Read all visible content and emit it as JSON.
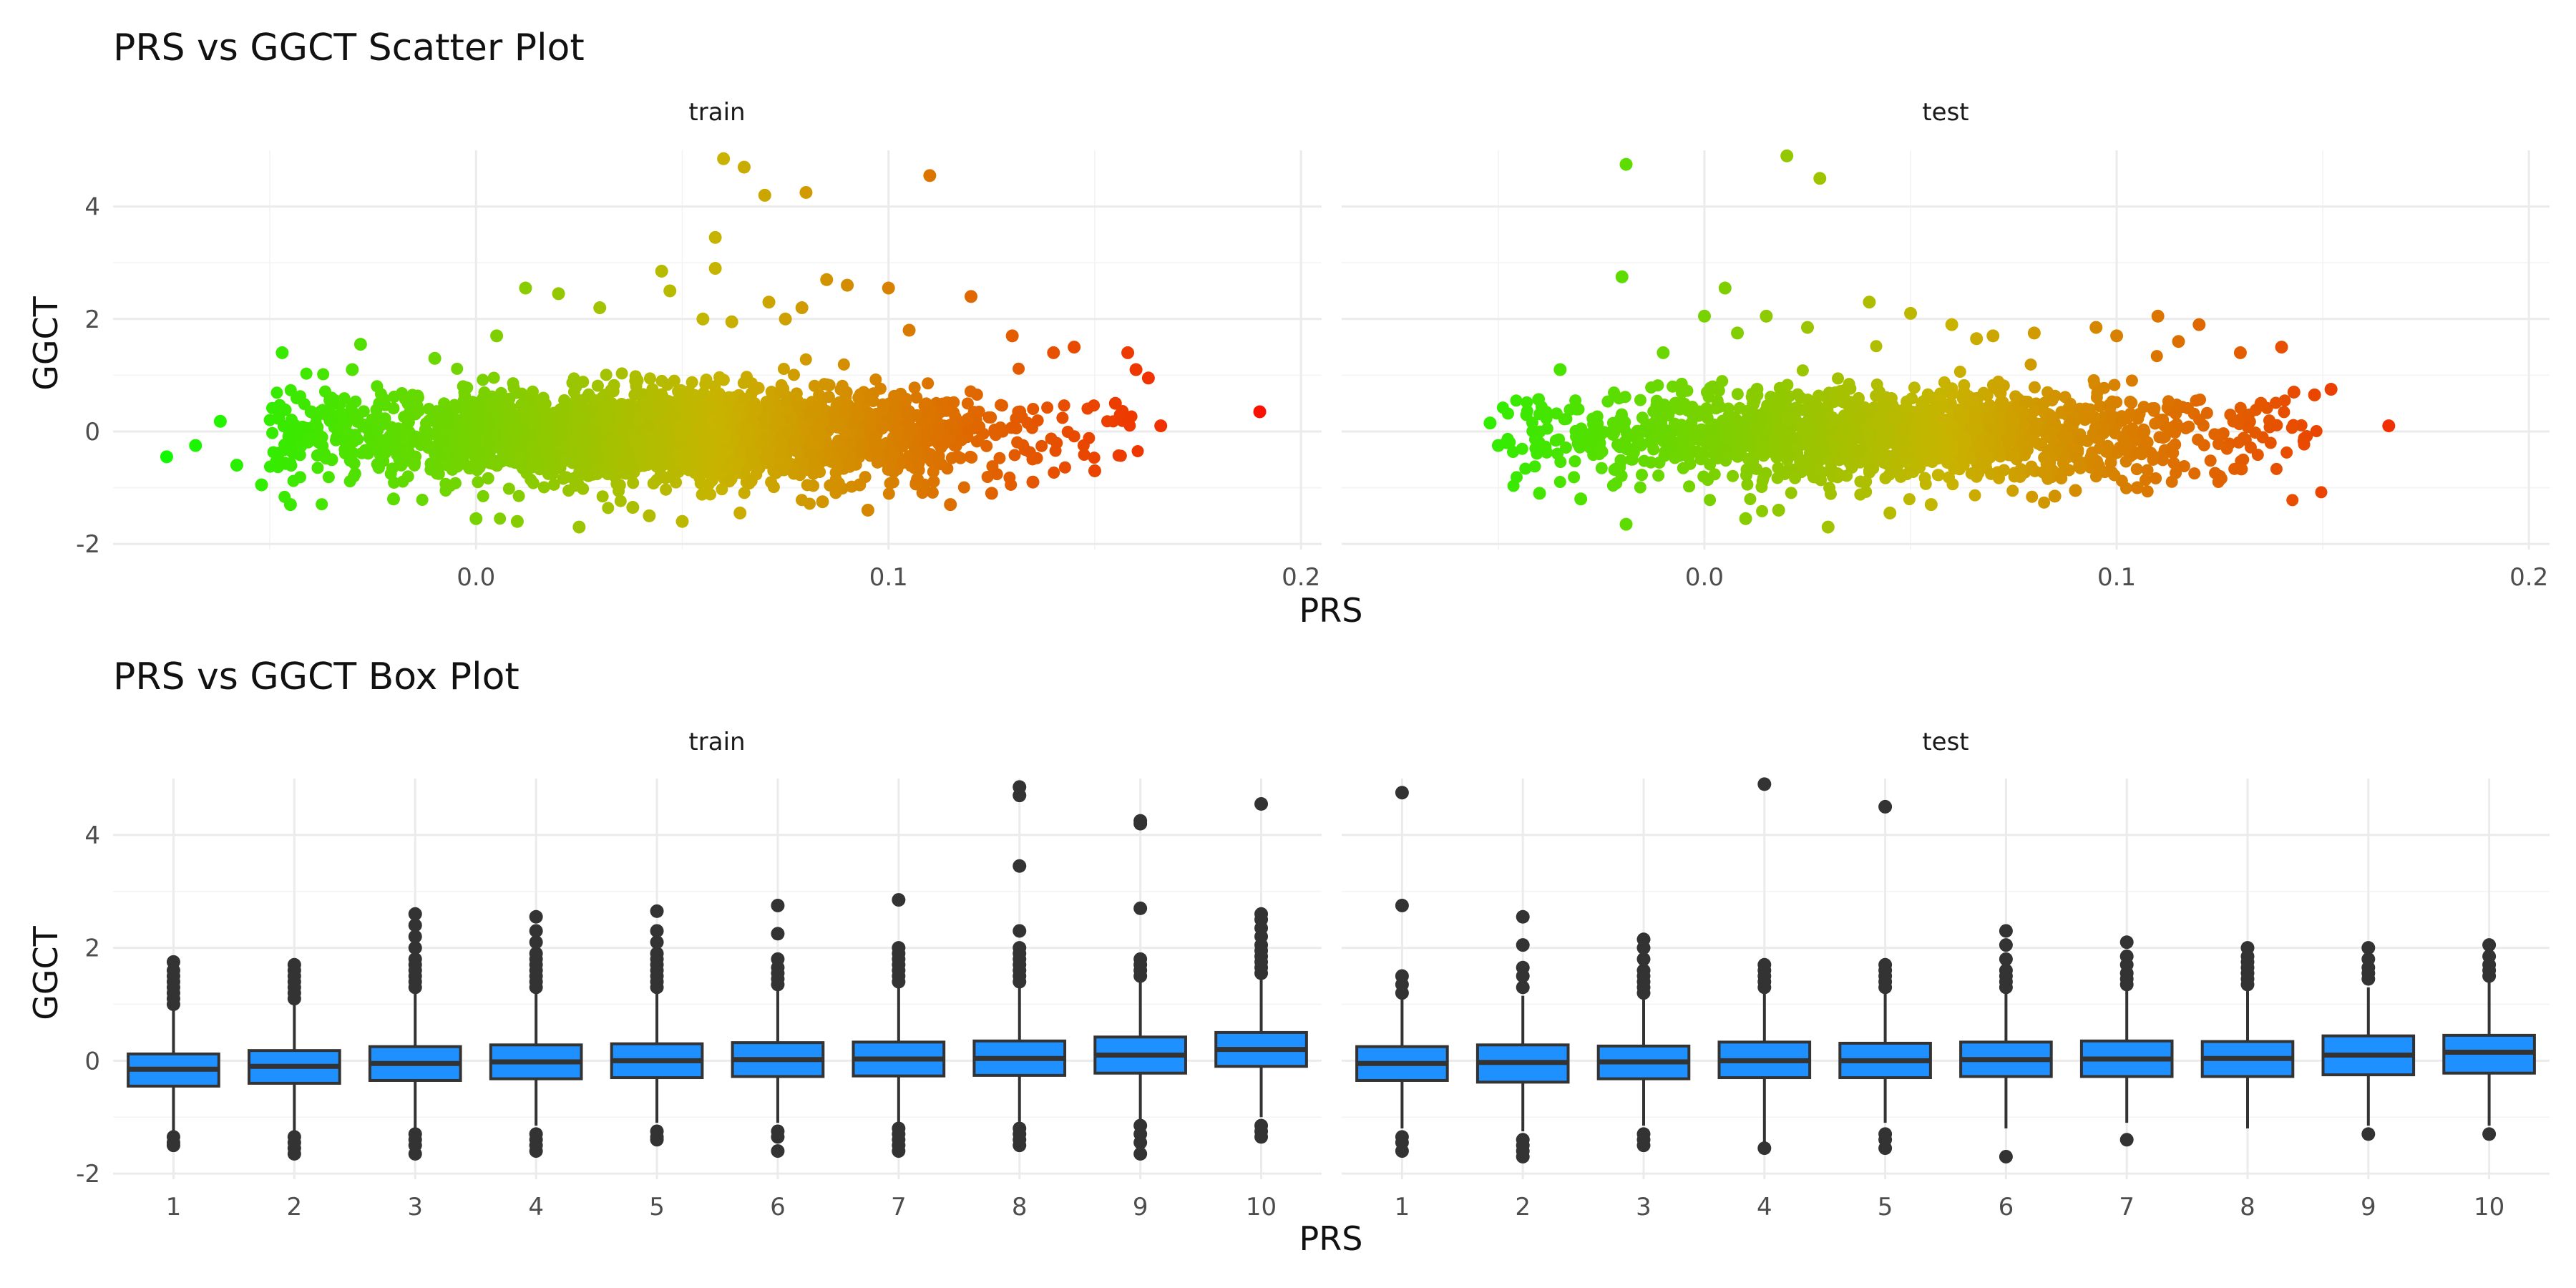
{
  "chart_data": [
    {
      "type": "scatter",
      "title": "PRS vs GGCT Scatter Plot",
      "xlabel": "PRS",
      "ylabel": "GGCT",
      "facets": [
        "train",
        "test"
      ],
      "xlim": [
        -0.088,
        0.205
      ],
      "ylim": [
        -2.1,
        5.0
      ],
      "x_ticks": [
        "0.0",
        "0.1",
        "0.2"
      ],
      "y_ticks": [
        "-2",
        "0",
        "2",
        "4"
      ],
      "grid": true,
      "legend": "none",
      "color_scale": {
        "low": "#00ff00",
        "mid": "#c8b400",
        "high": "#ff0000"
      },
      "series": [
        {
          "facet": "train",
          "x": [
            -0.075,
            -0.068,
            -0.062,
            -0.058,
            -0.052,
            -0.047,
            -0.045,
            -0.04,
            -0.035,
            -0.03,
            -0.02,
            -0.01,
            0.0,
            0.005,
            0.01,
            0.02,
            0.025,
            0.03,
            0.038,
            0.045,
            0.05,
            0.055,
            0.058,
            0.06,
            0.065,
            0.07,
            0.075,
            0.08,
            0.085,
            0.09,
            0.095,
            0.1,
            0.105,
            0.11,
            0.115,
            0.12,
            0.125,
            0.13,
            0.135,
            0.14,
            0.145,
            0.15,
            0.155,
            0.158,
            0.16,
            0.163,
            0.166,
            0.19,
            0.062,
            0.064,
            0.071,
            0.084,
            0.107,
            0.058,
            0.079,
            0.093,
            0.042,
            0.012,
            -0.028,
            0.047
          ],
          "y": [
            -0.45,
            -0.25,
            0.18,
            -0.6,
            -0.95,
            1.4,
            -1.3,
            0.35,
            -0.5,
            1.1,
            -1.2,
            1.3,
            -1.55,
            1.7,
            -1.6,
            2.45,
            -1.7,
            2.2,
            -1.35,
            2.85,
            -1.6,
            2.0,
            3.45,
            4.85,
            4.7,
            4.2,
            2.0,
            4.25,
            2.7,
            2.6,
            -1.4,
            2.55,
            1.8,
            4.55,
            -1.3,
            2.4,
            -1.1,
            1.7,
            -0.9,
            1.4,
            1.5,
            -0.7,
            0.5,
            1.4,
            1.1,
            0.95,
            0.1,
            0.35,
            1.95,
            -1.45,
            2.3,
            -1.25,
            -0.85,
            2.9,
            2.2,
            -0.95,
            -1.5,
            2.55,
            1.55,
            2.5
          ]
        },
        {
          "facet": "test",
          "x": [
            -0.052,
            -0.05,
            -0.048,
            -0.04,
            -0.035,
            -0.03,
            -0.02,
            -0.019,
            -0.019,
            -0.01,
            0.0,
            0.005,
            0.01,
            0.015,
            0.02,
            0.028,
            0.03,
            0.04,
            0.045,
            0.05,
            0.055,
            0.06,
            0.07,
            0.08,
            0.09,
            0.095,
            0.1,
            0.105,
            0.11,
            0.115,
            0.12,
            0.125,
            0.13,
            0.135,
            0.14,
            0.143,
            0.148,
            0.152,
            0.166,
            0.025,
            0.018,
            0.008,
            0.085,
            0.066
          ],
          "y": [
            0.15,
            -0.25,
            -0.2,
            -1.1,
            1.1,
            -1.2,
            2.75,
            4.75,
            -1.65,
            1.4,
            2.05,
            2.55,
            -1.55,
            2.05,
            4.9,
            4.5,
            -1.7,
            2.3,
            -1.45,
            2.1,
            -1.3,
            1.9,
            1.7,
            1.75,
            -1.05,
            1.85,
            1.7,
            -1.0,
            2.05,
            1.6,
            1.9,
            -0.8,
            1.4,
            0.5,
            1.5,
            0.7,
            0.65,
            0.75,
            0.1,
            1.85,
            -1.4,
            1.75,
            -1.15,
            1.65
          ]
        }
      ]
    },
    {
      "type": "box",
      "title": "PRS vs GGCT Box Plot",
      "xlabel": "PRS",
      "ylabel": "GGCT",
      "facets": [
        "train",
        "test"
      ],
      "categories": [
        "1",
        "2",
        "3",
        "4",
        "5",
        "6",
        "7",
        "8",
        "9",
        "10"
      ],
      "ylim": [
        -2.1,
        5.0
      ],
      "y_ticks": [
        "-2",
        "0",
        "2",
        "4"
      ],
      "grid": true,
      "legend": "none",
      "box_fill": "#1e90ff",
      "series": [
        {
          "facet": "train",
          "q1": [
            -0.45,
            -0.4,
            -0.35,
            -0.32,
            -0.3,
            -0.28,
            -0.27,
            -0.26,
            -0.22,
            -0.1
          ],
          "median": [
            -0.15,
            -0.1,
            -0.05,
            -0.02,
            0.0,
            0.02,
            0.03,
            0.04,
            0.1,
            0.2
          ],
          "q3": [
            0.12,
            0.18,
            0.25,
            0.28,
            0.3,
            0.32,
            0.33,
            0.35,
            0.42,
            0.5
          ],
          "whisker_low": [
            -1.25,
            -1.3,
            -1.2,
            -1.15,
            -1.1,
            -1.1,
            -1.1,
            -1.08,
            -1.05,
            -1.0
          ],
          "whisker_high": [
            0.95,
            1.05,
            1.2,
            1.22,
            1.25,
            1.3,
            1.32,
            1.35,
            1.45,
            1.5
          ],
          "outliers_high": [
            [
              1.0,
              1.1,
              1.2,
              1.3,
              1.4,
              1.5,
              1.6,
              1.75
            ],
            [
              1.1,
              1.2,
              1.3,
              1.4,
              1.5,
              1.6,
              1.7
            ],
            [
              1.3,
              1.4,
              1.5,
              1.6,
              1.7,
              1.8,
              2.0,
              2.2,
              2.4,
              2.6
            ],
            [
              1.3,
              1.4,
              1.5,
              1.6,
              1.7,
              1.8,
              1.9,
              2.1,
              2.3,
              2.55
            ],
            [
              1.3,
              1.4,
              1.5,
              1.6,
              1.7,
              1.8,
              1.9,
              2.1,
              2.3,
              2.65
            ],
            [
              1.35,
              1.45,
              1.55,
              1.65,
              1.8,
              2.25,
              2.75
            ],
            [
              1.4,
              1.5,
              1.6,
              1.7,
              1.8,
              1.9,
              2.0,
              2.85
            ],
            [
              1.4,
              1.5,
              1.6,
              1.7,
              1.8,
              1.9,
              2.0,
              2.3,
              3.45,
              4.7,
              4.85
            ],
            [
              1.5,
              1.6,
              1.7,
              1.8,
              2.7,
              4.2,
              4.25
            ],
            [
              1.55,
              1.65,
              1.75,
              1.85,
              1.95,
              2.05,
              2.2,
              2.35,
              2.5,
              2.6,
              4.55
            ]
          ],
          "outliers_low": [
            [
              -1.35,
              -1.45,
              -1.5
            ],
            [
              -1.35,
              -1.45,
              -1.55,
              -1.65
            ],
            [
              -1.3,
              -1.4,
              -1.5,
              -1.65
            ],
            [
              -1.3,
              -1.4,
              -1.5,
              -1.6
            ],
            [
              -1.25,
              -1.35,
              -1.4
            ],
            [
              -1.25,
              -1.35,
              -1.6
            ],
            [
              -1.2,
              -1.3,
              -1.4,
              -1.5,
              -1.6
            ],
            [
              -1.2,
              -1.3,
              -1.4,
              -1.5
            ],
            [
              -1.15,
              -1.3,
              -1.45,
              -1.65
            ],
            [
              -1.15,
              -1.25,
              -1.35
            ]
          ]
        },
        {
          "facet": "test",
          "q1": [
            -0.35,
            -0.38,
            -0.32,
            -0.3,
            -0.3,
            -0.28,
            -0.28,
            -0.28,
            -0.25,
            -0.22
          ],
          "median": [
            -0.05,
            -0.03,
            -0.02,
            0.0,
            0.0,
            0.02,
            0.03,
            0.04,
            0.1,
            0.15
          ],
          "q3": [
            0.25,
            0.28,
            0.26,
            0.33,
            0.31,
            0.33,
            0.35,
            0.34,
            0.44,
            0.45
          ],
          "whisker_low": [
            -1.2,
            -1.25,
            -1.15,
            -1.5,
            -1.1,
            -1.2,
            -1.1,
            -1.2,
            -1.15,
            -1.15
          ],
          "whisker_high": [
            1.1,
            1.15,
            1.1,
            1.2,
            1.2,
            1.2,
            1.25,
            1.25,
            1.3,
            1.4
          ],
          "outliers_high": [
            [
              1.2,
              1.35,
              1.5,
              2.75,
              4.75
            ],
            [
              1.3,
              1.5,
              1.65,
              2.05,
              2.55
            ],
            [
              1.2,
              1.3,
              1.4,
              1.5,
              1.6,
              1.8,
              2.0,
              2.15
            ],
            [
              1.3,
              1.4,
              1.5,
              1.6,
              1.7,
              4.9
            ],
            [
              1.3,
              1.4,
              1.5,
              1.6,
              1.7,
              4.5
            ],
            [
              1.3,
              1.4,
              1.5,
              1.6,
              1.8,
              2.05,
              2.3
            ],
            [
              1.35,
              1.45,
              1.55,
              1.7,
              1.85,
              2.1
            ],
            [
              1.35,
              1.45,
              1.55,
              1.65,
              1.75,
              1.85,
              2.0
            ],
            [
              1.45,
              1.55,
              1.65,
              1.8,
              2.0
            ],
            [
              1.5,
              1.6,
              1.7,
              1.85,
              2.05
            ]
          ],
          "outliers_low": [
            [
              -1.35,
              -1.45,
              -1.6
            ],
            [
              -1.4,
              -1.5,
              -1.6,
              -1.7
            ],
            [
              -1.3,
              -1.4,
              -1.5
            ],
            [
              -1.55
            ],
            [
              -1.3,
              -1.4,
              -1.55
            ],
            [
              -1.7
            ],
            [
              -1.4
            ],
            [],
            [
              -1.3
            ],
            [
              -1.3
            ]
          ]
        }
      ]
    }
  ]
}
